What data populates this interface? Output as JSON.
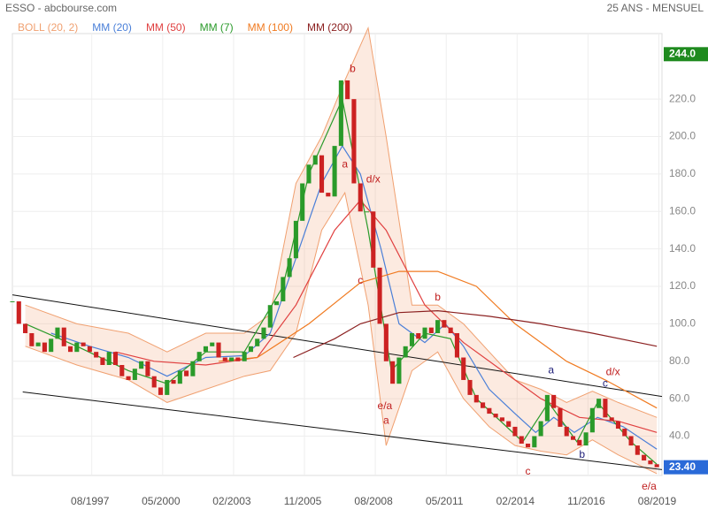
{
  "header": {
    "title": "ESSO - abcbourse.com",
    "period": "25 ANS - MENSUEL"
  },
  "chart_data": {
    "type": "candlestick",
    "up_color": "#2a9a2a",
    "down_color": "#cc2222",
    "xlim": [
      1994.5,
      2019.7
    ],
    "ylim": [
      19,
      255
    ],
    "grid": true,
    "xticks": [
      {
        "value": 1997.58,
        "label": "08/1997"
      },
      {
        "value": 2000.33,
        "label": "05/2000"
      },
      {
        "value": 2003.08,
        "label": "02/2003"
      },
      {
        "value": 2005.83,
        "label": "11/2005"
      },
      {
        "value": 2008.58,
        "label": "08/2008"
      },
      {
        "value": 2011.33,
        "label": "05/2011"
      },
      {
        "value": 2014.08,
        "label": "02/2014"
      },
      {
        "value": 2016.83,
        "label": "11/2016"
      },
      {
        "value": 2019.58,
        "label": "08/2019"
      }
    ],
    "yticks": [
      {
        "value": 40,
        "label": "40.0"
      },
      {
        "value": 60,
        "label": "60.0"
      },
      {
        "value": 80,
        "label": "80.0"
      },
      {
        "value": 100,
        "label": "100.0"
      },
      {
        "value": 120,
        "label": "120.0"
      },
      {
        "value": 140,
        "label": "140.0"
      },
      {
        "value": 160,
        "label": "160.0"
      },
      {
        "value": 180,
        "label": "180.0"
      },
      {
        "value": 200,
        "label": "200.0"
      },
      {
        "value": 220,
        "label": "220.0"
      }
    ],
    "high": {
      "value": 244,
      "label": "244.0",
      "color": "#1e8a1e"
    },
    "last": {
      "value": 23.4,
      "label": "23.40",
      "color": "#2a6ad8"
    },
    "x": [
      1994.5,
      1994.75,
      1995,
      1995.25,
      1995.5,
      1995.75,
      1996,
      1996.25,
      1996.5,
      1996.75,
      1997,
      1997.25,
      1997.5,
      1997.75,
      1998,
      1998.25,
      1998.5,
      1998.75,
      1999,
      1999.25,
      1999.5,
      1999.75,
      2000,
      2000.25,
      2000.5,
      2000.75,
      2001,
      2001.25,
      2001.5,
      2001.75,
      2002,
      2002.25,
      2002.5,
      2002.75,
      2003,
      2003.25,
      2003.5,
      2003.75,
      2004,
      2004.25,
      2004.5,
      2004.75,
      2005,
      2005.25,
      2005.5,
      2005.75,
      2006,
      2006.25,
      2006.5,
      2006.75,
      2007,
      2007.25,
      2007.5,
      2007.75,
      2008,
      2008.25,
      2008.5,
      2008.75,
      2009,
      2009.25,
      2009.5,
      2009.75,
      2010,
      2010.25,
      2010.5,
      2010.75,
      2011,
      2011.25,
      2011.5,
      2011.75,
      2012,
      2012.25,
      2012.5,
      2012.75,
      2013,
      2013.25,
      2013.5,
      2013.75,
      2014,
      2014.25,
      2014.5,
      2014.75,
      2015,
      2015.25,
      2015.5,
      2015.75,
      2016,
      2016.25,
      2016.5,
      2016.75,
      2017,
      2017.25,
      2017.5,
      2017.75,
      2018,
      2018.25,
      2018.5,
      2018.75,
      2019,
      2019.25,
      2019.5
    ],
    "values": [
      112,
      100,
      95,
      88,
      90,
      85,
      92,
      98,
      88,
      85,
      90,
      88,
      85,
      82,
      78,
      85,
      78,
      72,
      70,
      76,
      80,
      72,
      66,
      62,
      70,
      68,
      75,
      72,
      80,
      85,
      88,
      90,
      82,
      80,
      82,
      80,
      85,
      88,
      92,
      98,
      110,
      112,
      125,
      135,
      155,
      175,
      185,
      190,
      170,
      168,
      195,
      230,
      220,
      175,
      160,
      160,
      130,
      100,
      80,
      68,
      82,
      88,
      95,
      92,
      98,
      95,
      102,
      98,
      95,
      82,
      70,
      62,
      58,
      55,
      52,
      50,
      48,
      45,
      40,
      36,
      34,
      40,
      48,
      62,
      55,
      45,
      40,
      38,
      35,
      42,
      55,
      60,
      50,
      48,
      44,
      40,
      35,
      30,
      27,
      25,
      23.4
    ],
    "series": [
      {
        "name": "BOLL (20, 2)",
        "color": "#f0a070",
        "x": [
          1995,
          1997,
          1999,
          2000.5,
          2002,
          2003.5,
          2004.5,
          2005.5,
          2006.5,
          2007.4,
          2008.3,
          2009,
          2010,
          2011,
          2012,
          2013,
          2014,
          2015,
          2016,
          2017,
          2018,
          2019.5
        ],
        "upper": [
          110,
          100,
          95,
          85,
          95,
          95,
          105,
          175,
          200,
          230,
          258,
          200,
          110,
          110,
          100,
          85,
          70,
          65,
          58,
          64,
          58,
          50
        ],
        "lower": [
          88,
          78,
          70,
          58,
          65,
          72,
          75,
          95,
          150,
          170,
          110,
          35,
          75,
          85,
          60,
          45,
          35,
          32,
          30,
          38,
          30,
          20
        ]
      },
      {
        "name": "MM (20)",
        "color": "#4a7fd8",
        "x": [
          1996,
          1997.5,
          1999,
          2000.5,
          2002,
          2003.5,
          2004.5,
          2005.5,
          2006.5,
          2007.3,
          2008,
          2008.8,
          2009.5,
          2010.5,
          2011.3,
          2012,
          2013,
          2014,
          2014.8,
          2015.5,
          2016.3,
          2017.2,
          2018.2,
          2019.5
        ],
        "values": [
          95,
          88,
          82,
          72,
          82,
          83,
          95,
          135,
          175,
          195,
          180,
          140,
          100,
          90,
          100,
          88,
          65,
          52,
          42,
          50,
          42,
          50,
          45,
          33
        ]
      },
      {
        "name": "MM (50)",
        "color": "#e04040",
        "x": [
          1998.5,
          2000,
          2002,
          2004,
          2005.5,
          2007,
          2008,
          2009,
          2010.5,
          2012,
          2013.5,
          2015,
          2016.5,
          2018,
          2019.5
        ],
        "values": [
          85,
          80,
          78,
          82,
          110,
          150,
          166,
          150,
          110,
          90,
          75,
          60,
          50,
          48,
          42
        ]
      },
      {
        "name": "MM (7)",
        "color": "#2a9a2a",
        "x": [
          1995,
          1997,
          1999,
          2000.5,
          2002,
          2003.5,
          2005,
          2006,
          2007.3,
          2008.3,
          2009.2,
          2010.5,
          2011.5,
          2012.5,
          2014.3,
          2015.3,
          2016.4,
          2017.2,
          2018.5,
          2019.5
        ],
        "values": [
          100,
          88,
          75,
          68,
          85,
          85,
          120,
          180,
          220,
          150,
          75,
          95,
          92,
          60,
          37,
          58,
          37,
          58,
          37,
          25
        ]
      },
      {
        "name": "MM (100)",
        "color": "#f07a20",
        "x": [
          2002.5,
          2004,
          2006,
          2008,
          2009.5,
          2011,
          2012.5,
          2014,
          2016,
          2017.5,
          2019.5
        ],
        "values": [
          80,
          82,
          100,
          122,
          128,
          128,
          120,
          100,
          80,
          70,
          55
        ]
      },
      {
        "name": "MM (200)",
        "color": "#8b2020",
        "x": [
          2005.4,
          2007,
          2008,
          2009.5,
          2011,
          2013,
          2015,
          2017,
          2019.5
        ],
        "values": [
          82,
          92,
          100,
          106,
          107,
          104,
          100,
          95,
          88
        ]
      }
    ],
    "trend_lines": [
      {
        "x": [
          1994.5,
          2019.7
        ],
        "values": [
          115.5,
          61.2
        ]
      },
      {
        "x": [
          1994.9,
          2019.7
        ],
        "values": [
          63.6,
          22.1
        ]
      }
    ],
    "annotations": [
      {
        "text": "b",
        "x": 2007.7,
        "y": 236,
        "color": "#c02020"
      },
      {
        "text": "a",
        "x": 2007.4,
        "y": 185,
        "color": "#c02020"
      },
      {
        "text": "d/x",
        "x": 2008.5,
        "y": 177,
        "color": "#c02020"
      },
      {
        "text": "c",
        "x": 2008.0,
        "y": 123,
        "color": "#c02020"
      },
      {
        "text": "e/a",
        "x": 2008.95,
        "y": 56,
        "color": "#c02020"
      },
      {
        "text": "a",
        "x": 2009.0,
        "y": 48,
        "color": "#c02020"
      },
      {
        "text": "b",
        "x": 2011.0,
        "y": 114,
        "color": "#c02020"
      },
      {
        "text": "c",
        "x": 2014.5,
        "y": 21,
        "color": "#c02020"
      },
      {
        "text": "a",
        "x": 2015.4,
        "y": 75,
        "color": "#20207a"
      },
      {
        "text": "b",
        "x": 2016.6,
        "y": 30,
        "color": "#20207a"
      },
      {
        "text": "c",
        "x": 2017.5,
        "y": 68,
        "color": "#20207a"
      },
      {
        "text": "d/x",
        "x": 2017.8,
        "y": 74,
        "color": "#c02020"
      },
      {
        "text": "e/a",
        "x": 2019.2,
        "y": 13,
        "color": "#c02020"
      }
    ]
  }
}
